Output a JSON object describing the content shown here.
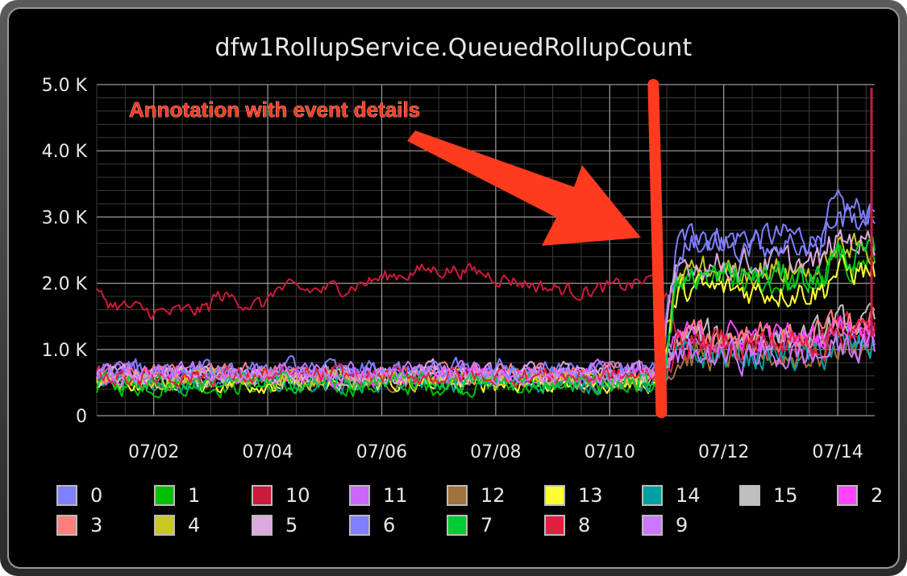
{
  "window": {
    "title": "dfw1RollupService.QueuedRollupCount"
  },
  "annotation": {
    "text": "Annotation with event details",
    "color": "#ff3b1f"
  },
  "chart_data": {
    "type": "line",
    "title": "dfw1RollupService.QueuedRollupCount",
    "xlabel": "",
    "ylabel": "",
    "x_tick_labels": [
      "07/02",
      "07/04",
      "07/06",
      "07/08",
      "07/10",
      "07/12",
      "07/14"
    ],
    "x_range": [
      "07/01",
      "07/14"
    ],
    "y_tick_labels": [
      "0",
      "1.0 K",
      "2.0 K",
      "3.0 K",
      "4.0 K",
      "5.0 K"
    ],
    "ylim": [
      0,
      5000
    ],
    "grid": true,
    "background": "#000000",
    "legend_position": "bottom",
    "annotation_date": "07/10",
    "series": [
      {
        "name": "0",
        "color": "#7f7fff",
        "phase1_mean": 650,
        "phase2_mean": 2700
      },
      {
        "name": "1",
        "color": "#00c000",
        "phase1_mean": 450,
        "phase2_mean": 2000
      },
      {
        "name": "10",
        "color": "#cc1a3a",
        "phase1_mean": 1950,
        "phase2_mean": 1100
      },
      {
        "name": "11",
        "color": "#cc66ff",
        "phase1_mean": 650,
        "phase2_mean": 1100
      },
      {
        "name": "12",
        "color": "#a0723c",
        "phase1_mean": 550,
        "phase2_mean": 900
      },
      {
        "name": "13",
        "color": "#ffff33",
        "phase1_mean": 500,
        "phase2_mean": 1900
      },
      {
        "name": "14",
        "color": "#00a0a0",
        "phase1_mean": 500,
        "phase2_mean": 900
      },
      {
        "name": "15",
        "color": "#c0c0c0",
        "phase1_mean": 550,
        "phase2_mean": 1200
      },
      {
        "name": "2",
        "color": "#ff44ff",
        "phase1_mean": 600,
        "phase2_mean": 1200
      },
      {
        "name": "3",
        "color": "#ff7f7f",
        "phase1_mean": 650,
        "phase2_mean": 1200
      },
      {
        "name": "4",
        "color": "#c8c820",
        "phase1_mean": 550,
        "phase2_mean": 2200
      },
      {
        "name": "5",
        "color": "#ddaadd",
        "phase1_mean": 650,
        "phase2_mean": 2300
      },
      {
        "name": "6",
        "color": "#7f7fff",
        "phase1_mean": 700,
        "phase2_mean": 2600
      },
      {
        "name": "7",
        "color": "#00cc33",
        "phase1_mean": 500,
        "phase2_mean": 2100
      },
      {
        "name": "8",
        "color": "#e02040",
        "phase1_mean": 600,
        "phase2_mean": 1100
      },
      {
        "name": "9",
        "color": "#cc77ff",
        "phase1_mean": 650,
        "phase2_mean": 900
      }
    ]
  }
}
